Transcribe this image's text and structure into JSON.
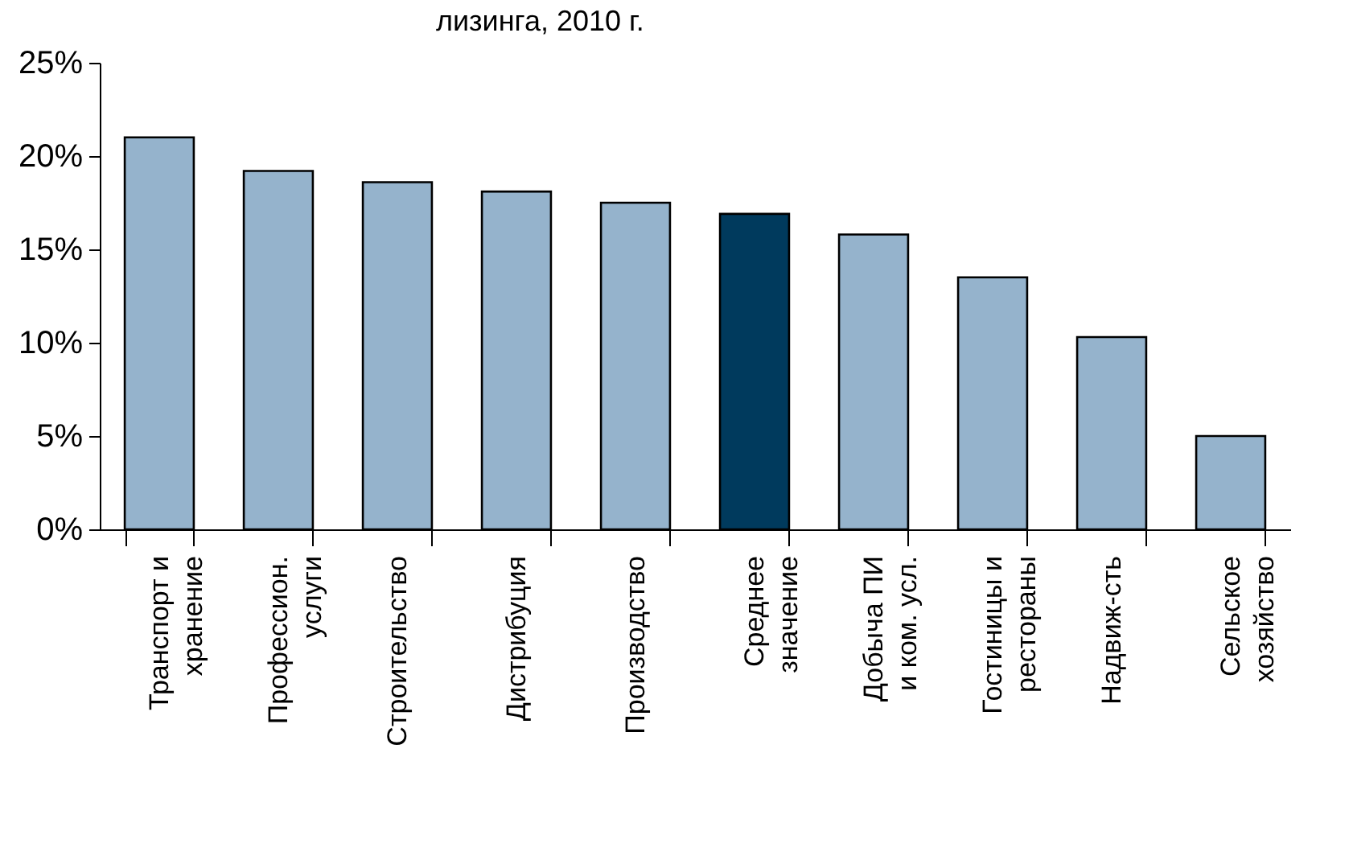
{
  "chart_data": {
    "type": "bar",
    "title": "лизинга, 2010 г.",
    "categories": [
      "Транспорт и\nхранение",
      "Профессион.\nуслуги",
      "Строительство",
      "Дистрибуция",
      "Производство",
      "Среднее\nзначение",
      "Добыча ПИ\nи ком. усл.",
      "Гостиницы и\nрестораны",
      "Надвиж-сть",
      "Сельское\nхозяйство"
    ],
    "values": [
      21.0,
      19.2,
      18.6,
      18.1,
      17.5,
      16.9,
      15.8,
      13.5,
      10.3,
      5.0
    ],
    "colors": [
      "#95b3cc",
      "#95b3cc",
      "#95b3cc",
      "#95b3cc",
      "#95b3cc",
      "#003a5d",
      "#95b3cc",
      "#95b3cc",
      "#95b3cc",
      "#95b3cc"
    ],
    "ylim": [
      0,
      25
    ],
    "yticks": [
      {
        "value": 0,
        "label": "0%"
      },
      {
        "value": 5,
        "label": "5%"
      },
      {
        "value": 10,
        "label": "10%"
      },
      {
        "value": 15,
        "label": "15%"
      },
      {
        "value": 20,
        "label": "20%"
      },
      {
        "value": 25,
        "label": "25%"
      }
    ],
    "grid": false
  }
}
